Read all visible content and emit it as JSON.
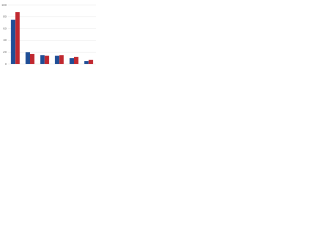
{
  "chart_data": {
    "type": "bar",
    "categories": [
      null,
      null,
      null,
      null,
      null,
      null
    ],
    "series": [
      {
        "color": "#1f4e96",
        "values": [
          75,
          20,
          15,
          14,
          10,
          5
        ]
      },
      {
        "color": "#c0282f",
        "values": [
          88,
          17,
          14,
          15,
          12,
          7
        ]
      }
    ],
    "ylim": [
      0,
      100
    ],
    "yticks": [
      0,
      20,
      40,
      60,
      80,
      100
    ],
    "grid": true
  }
}
